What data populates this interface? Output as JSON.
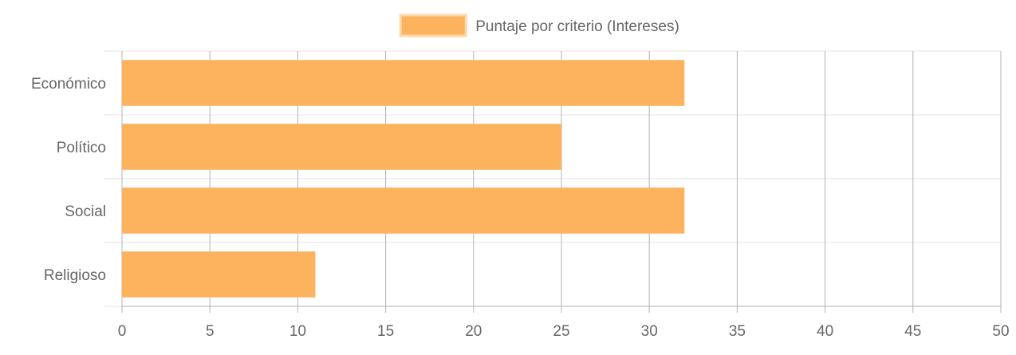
{
  "chart_data": {
    "type": "bar",
    "orientation": "horizontal",
    "categories": [
      "Económico",
      "Político",
      "Social",
      "Religioso"
    ],
    "series": [
      {
        "name": "Puntaje por criterio (Intereses)",
        "values": [
          32,
          25,
          32,
          11
        ],
        "color": "#fdb35e",
        "border_color": "#fbd8a8"
      }
    ],
    "xlim": [
      0,
      50
    ],
    "x_ticks": [
      0,
      5,
      10,
      15,
      20,
      25,
      30,
      35,
      40,
      45,
      50
    ],
    "grid": true,
    "legend_position": "top-center",
    "text_color": "#666666",
    "grid_color_vertical": "#b3b3b3",
    "grid_color_horizontal": "#e6e6e6"
  }
}
